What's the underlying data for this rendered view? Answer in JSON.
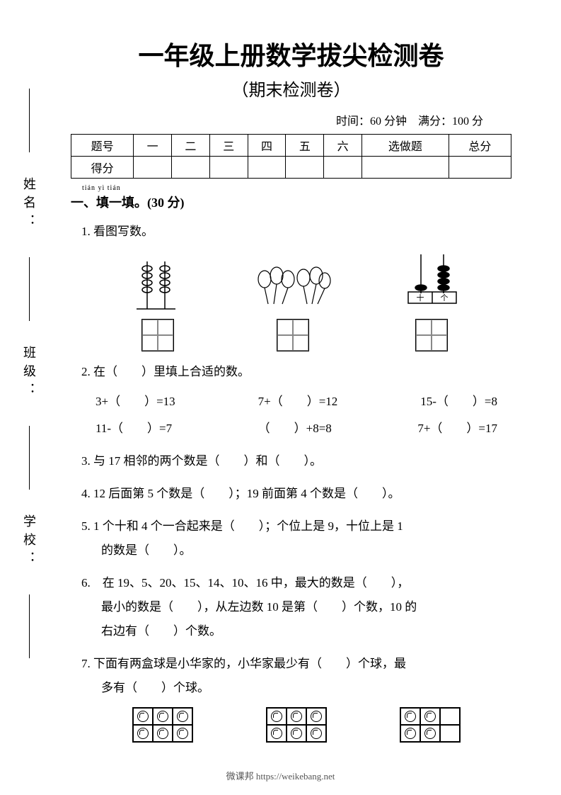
{
  "vertical_labels": {
    "name": "姓名：",
    "class": "班级：",
    "school": "学校："
  },
  "title": "一年级上册数学拔尖检测卷",
  "subtitle": "（期末检测卷）",
  "meta": {
    "time_label": "时间：",
    "time": "60 分钟",
    "full_label": "满分：",
    "full": "100 分"
  },
  "score_table": {
    "headers": [
      "题号",
      "一",
      "二",
      "三",
      "四",
      "五",
      "六",
      "选做题",
      "总分"
    ],
    "row_label": "得分"
  },
  "section1": {
    "pinyin": "tián yì tián",
    "title": "一、填一填。(30 分)"
  },
  "q1": {
    "text": "1. 看图写数。"
  },
  "q2": {
    "text": "2. 在（　　）里填上合适的数。",
    "eqs": [
      [
        "3+（　　）=13",
        "7+（　　）=12",
        "15-（　　）=8"
      ],
      [
        "11-（　　）=7",
        "（　　）+8=8",
        "7+（　　）=17"
      ]
    ]
  },
  "q3": {
    "text": "3. 与 17 相邻的两个数是（　　）和（　　）。"
  },
  "q4": {
    "text": "4. 12 后面第 5 个数是（　　）；19 前面第 4 个数是（　　）。"
  },
  "q5": {
    "line1": "5. 1 个十和 4 个一合起来是（　　）；个位上是 9，十位上是 1",
    "line2": "的数是（　　）。"
  },
  "q6": {
    "line1": "6.　在 19、5、20、15、14、10、16 中，最大的数是（　　），",
    "line2": "最小的数是（　　），从左边数 10 是第（　　）个数，10 的",
    "line3": "右边有（　　）个数。"
  },
  "q7": {
    "line1": "7. 下面有两盒球是小华家的，小华家最少有（　　）个球，最",
    "line2": "多有（　　）个球。",
    "boxes": [
      [
        1,
        1,
        1,
        1,
        1,
        1
      ],
      [
        1,
        1,
        1,
        1,
        1,
        1
      ],
      [
        1,
        1,
        0,
        1,
        1,
        0
      ]
    ]
  },
  "abacus_labels": {
    "tens": "十",
    "ones": "个"
  },
  "footer": {
    "text": "微课邦 https://weikebang.net"
  },
  "colors": {
    "text": "#000000",
    "bg": "#ffffff",
    "footer": "#555555"
  }
}
